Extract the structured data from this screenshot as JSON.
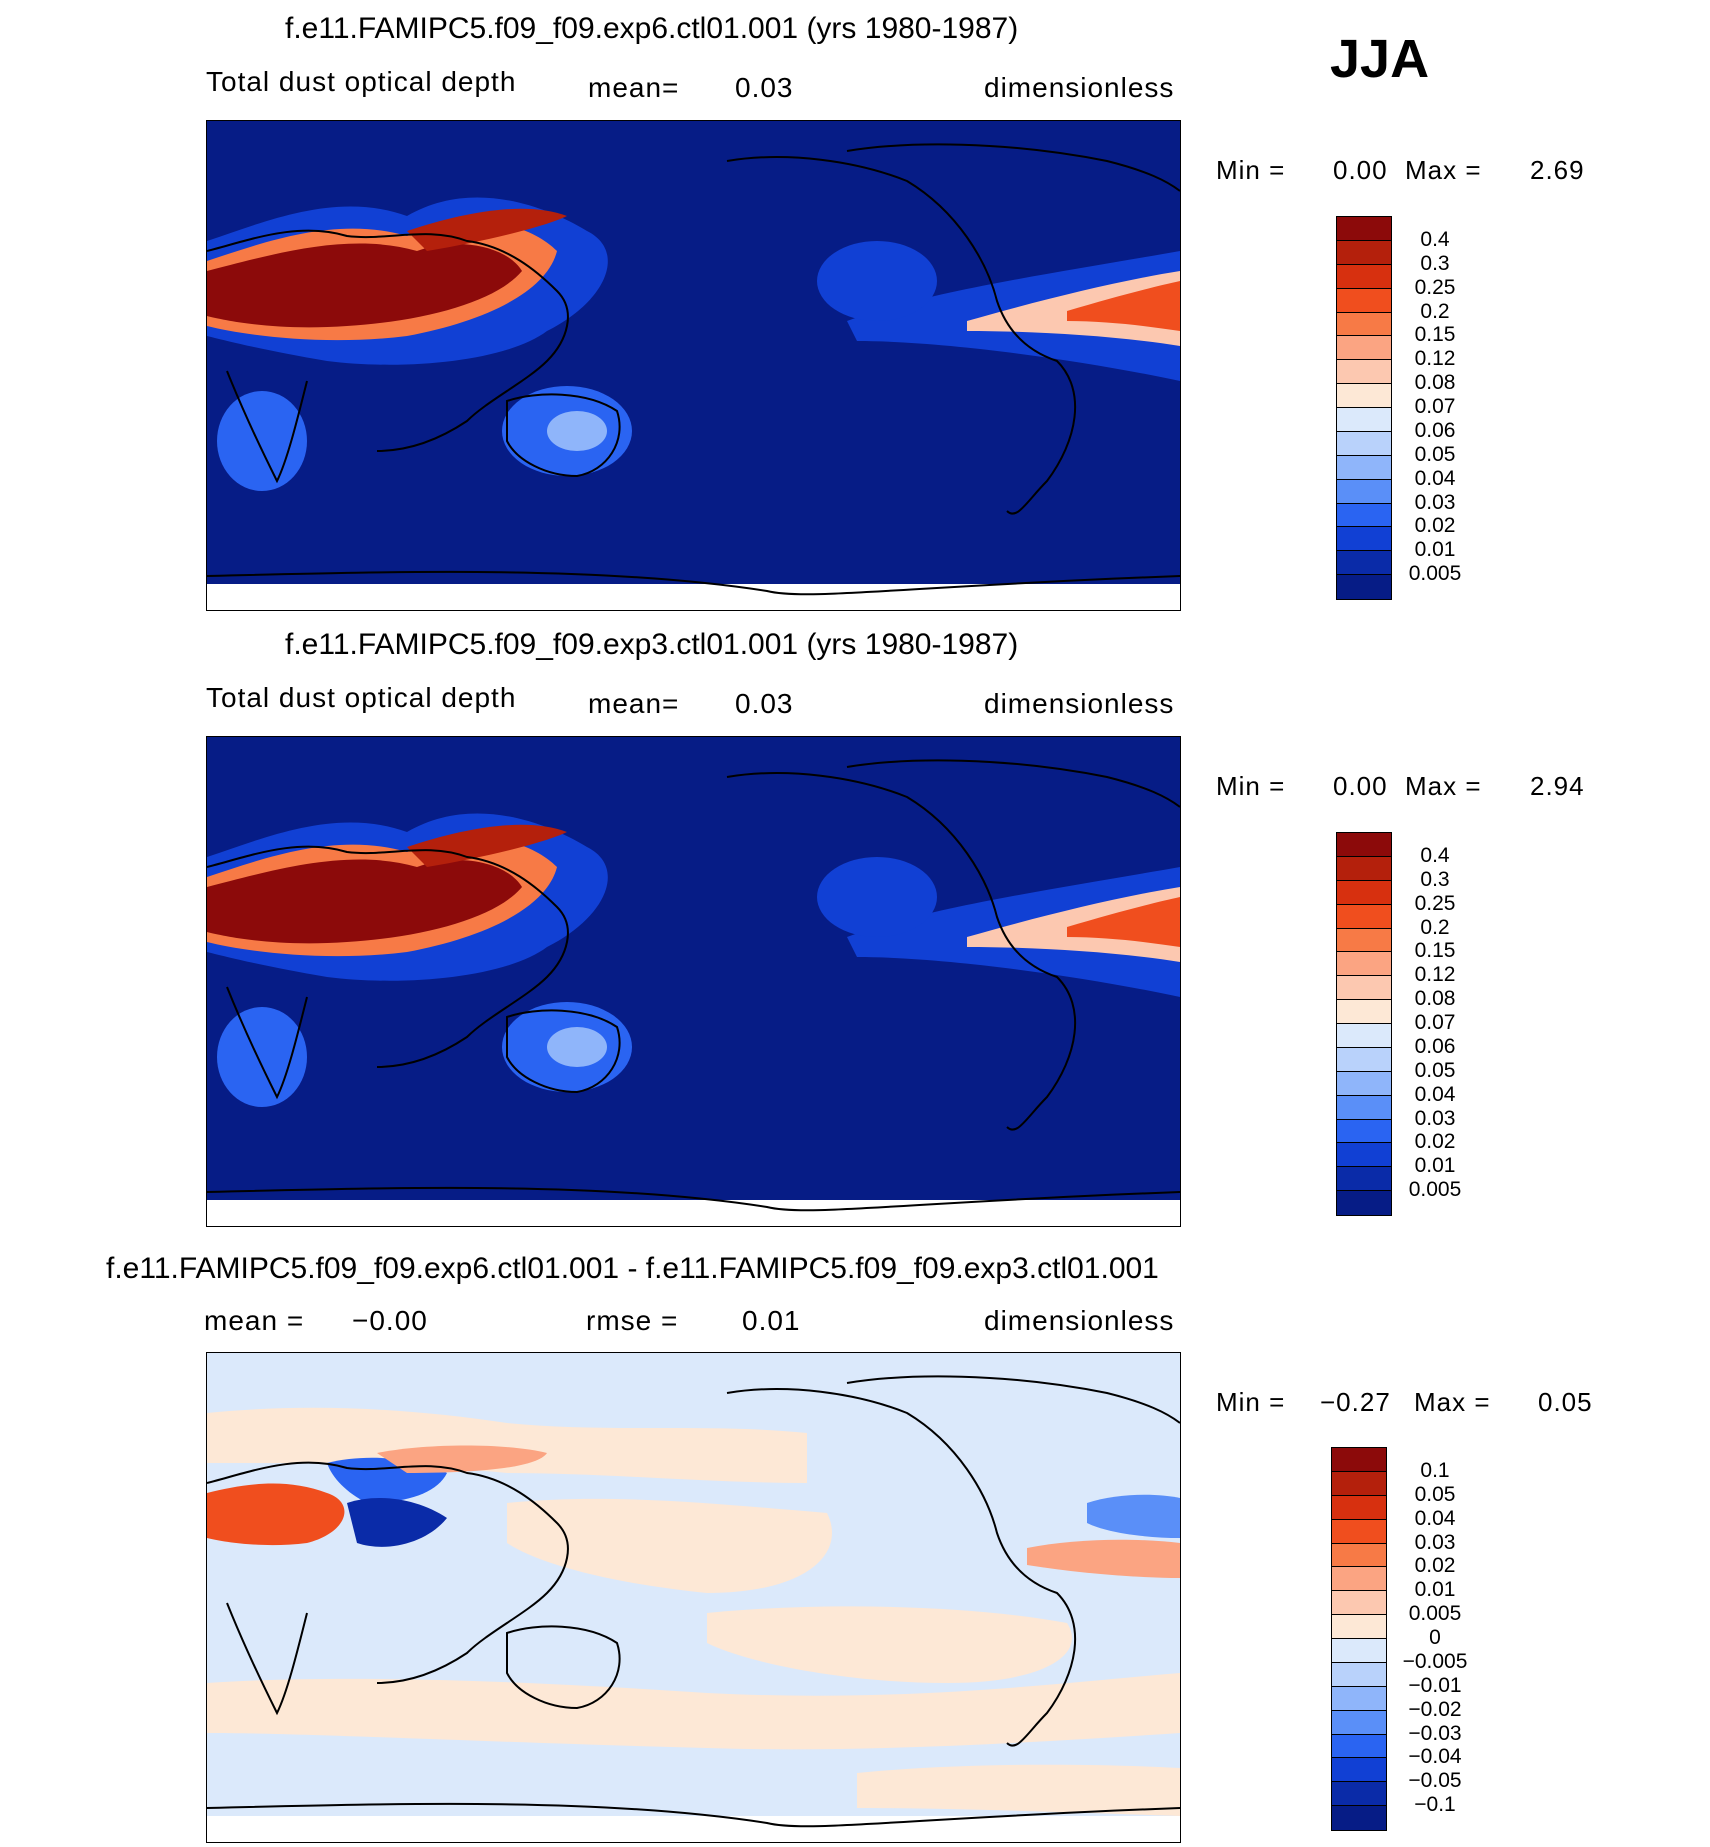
{
  "season": "JJA",
  "panels": [
    {
      "title": "f.e11.FAMIPC5.f09_f09.exp6.ctl01.001 (yrs 1980-1987)",
      "variable": "Total dust optical depth",
      "stat_label": "mean=",
      "stat_value": "0.03",
      "units": "dimensionless",
      "min_label": "Min =",
      "min_value": "0.00",
      "max_label": "Max =",
      "max_value": "2.69",
      "colorbar": {
        "labels": [
          "0.4",
          "0.3",
          "0.25",
          "0.2",
          "0.15",
          "0.12",
          "0.08",
          "0.07",
          "0.06",
          "0.05",
          "0.04",
          "0.03",
          "0.02",
          "0.01",
          "0.005"
        ],
        "colors": [
          "#8c0a0a",
          "#b4200c",
          "#d7300f",
          "#f04e1e",
          "#f77a46",
          "#fba482",
          "#fcc8b0",
          "#fde8d6",
          "#dbe9fb",
          "#b9d2fb",
          "#8fb5fa",
          "#5a8ff8",
          "#2a64f2",
          "#1140d4",
          "#0a2ba8",
          "#061c86"
        ]
      }
    },
    {
      "title": "f.e11.FAMIPC5.f09_f09.exp3.ctl01.001 (yrs 1980-1987)",
      "variable": "Total dust optical depth",
      "stat_label": "mean=",
      "stat_value": "0.03",
      "units": "dimensionless",
      "min_label": "Min =",
      "min_value": "0.00",
      "max_label": "Max =",
      "max_value": "2.94",
      "colorbar": {
        "labels": [
          "0.4",
          "0.3",
          "0.25",
          "0.2",
          "0.15",
          "0.12",
          "0.08",
          "0.07",
          "0.06",
          "0.05",
          "0.04",
          "0.03",
          "0.02",
          "0.01",
          "0.005"
        ],
        "colors": [
          "#8c0a0a",
          "#b4200c",
          "#d7300f",
          "#f04e1e",
          "#f77a46",
          "#fba482",
          "#fcc8b0",
          "#fde8d6",
          "#dbe9fb",
          "#b9d2fb",
          "#8fb5fa",
          "#5a8ff8",
          "#2a64f2",
          "#1140d4",
          "#0a2ba8",
          "#061c86"
        ]
      }
    },
    {
      "title": "f.e11.FAMIPC5.f09_f09.exp6.ctl01.001 - f.e11.FAMIPC5.f09_f09.exp3.ctl01.001",
      "mean_label": "mean =",
      "mean_value": "−0.00",
      "rmse_label": "rmse =",
      "rmse_value": "0.01",
      "units": "dimensionless",
      "min_label": "Min =",
      "min_value": "−0.27",
      "max_label": "Max =",
      "max_value": "0.05",
      "colorbar": {
        "labels": [
          "0.1",
          "0.05",
          "0.04",
          "0.03",
          "0.02",
          "0.01",
          "0.005",
          "0",
          "−0.005",
          "−0.01",
          "−0.02",
          "−0.03",
          "−0.04",
          "−0.05",
          "−0.1"
        ],
        "colors": [
          "#8c0a0a",
          "#b4200c",
          "#d7300f",
          "#f04e1e",
          "#f77a46",
          "#fba482",
          "#fcc8b0",
          "#fde8d6",
          "#dbe9fb",
          "#b9d2fb",
          "#8fb5fa",
          "#5a8ff8",
          "#2a64f2",
          "#1140d4",
          "#0a2ba8",
          "#061c86"
        ]
      }
    }
  ],
  "chart_data": [
    {
      "type": "heatmap",
      "title": "f.e11.FAMIPC5.f09_f09.exp6.ctl01.001 (yrs 1980-1987)",
      "subtitle": "Total dust optical depth",
      "mean": 0.03,
      "min": 0.0,
      "max": 2.69,
      "units": "dimensionless",
      "contour_levels": [
        0.005,
        0.01,
        0.02,
        0.03,
        0.04,
        0.05,
        0.06,
        0.07,
        0.08,
        0.12,
        0.15,
        0.2,
        0.25,
        0.3,
        0.4
      ]
    },
    {
      "type": "heatmap",
      "title": "f.e11.FAMIPC5.f09_f09.exp3.ctl01.001 (yrs 1980-1987)",
      "subtitle": "Total dust optical depth",
      "mean": 0.03,
      "min": 0.0,
      "max": 2.94,
      "units": "dimensionless",
      "contour_levels": [
        0.005,
        0.01,
        0.02,
        0.03,
        0.04,
        0.05,
        0.06,
        0.07,
        0.08,
        0.12,
        0.15,
        0.2,
        0.25,
        0.3,
        0.4
      ]
    },
    {
      "type": "heatmap",
      "title": "f.e11.FAMIPC5.f09_f09.exp6.ctl01.001 - f.e11.FAMIPC5.f09_f09.exp3.ctl01.001",
      "mean": -0.0,
      "rmse": 0.01,
      "min": -0.27,
      "max": 0.05,
      "units": "dimensionless",
      "contour_levels": [
        -0.1,
        -0.05,
        -0.04,
        -0.03,
        -0.02,
        -0.01,
        -0.005,
        0,
        0.005,
        0.01,
        0.02,
        0.03,
        0.04,
        0.05,
        0.1
      ]
    }
  ]
}
